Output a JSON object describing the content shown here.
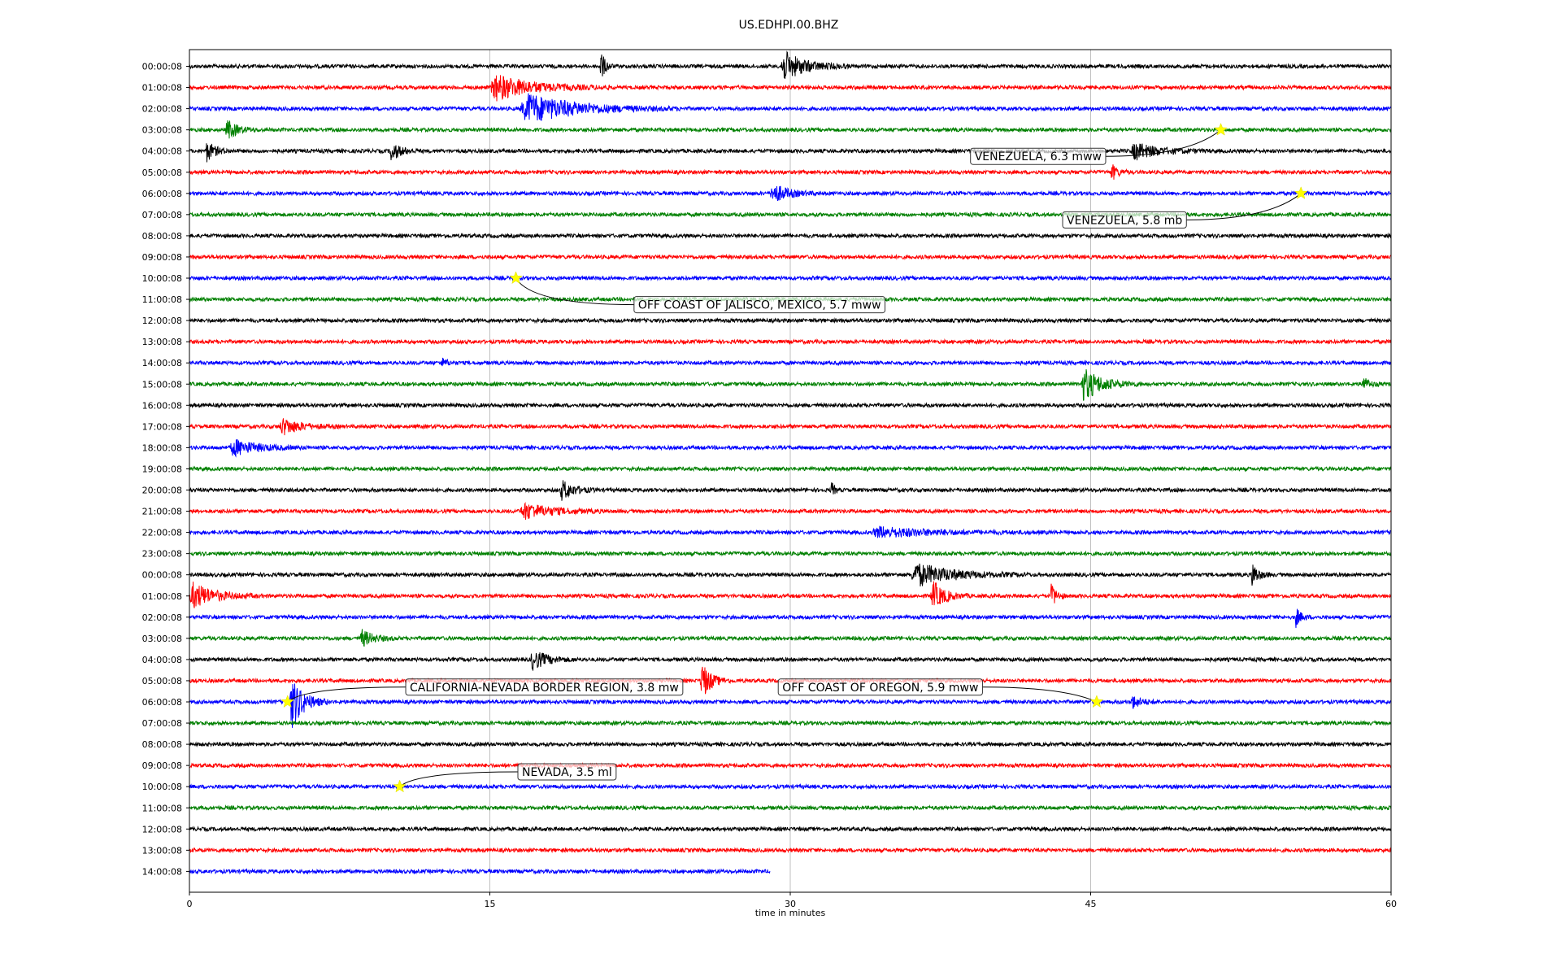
{
  "chart_data": {
    "type": "line",
    "title": "US.EDHPI.00.BHZ",
    "xlabel": "time in minutes",
    "ylabel": "",
    "xlim": [
      0,
      60
    ],
    "x_ticks": [
      "0",
      "15",
      "30",
      "45",
      "60"
    ],
    "x_tick_values": [
      0,
      15,
      30,
      45,
      60
    ],
    "grid": "vertical lines at x ticks",
    "row_labels": [
      "00:00:08",
      "01:00:08",
      "02:00:08",
      "03:00:08",
      "04:00:08",
      "05:00:08",
      "06:00:08",
      "07:00:08",
      "08:00:08",
      "09:00:08",
      "10:00:08",
      "11:00:08",
      "12:00:08",
      "13:00:08",
      "14:00:08",
      "15:00:08",
      "16:00:08",
      "17:00:08",
      "18:00:08",
      "19:00:08",
      "20:00:08",
      "21:00:08",
      "22:00:08",
      "23:00:08",
      "00:00:08",
      "01:00:08",
      "02:00:08",
      "03:00:08",
      "04:00:08",
      "05:00:08",
      "06:00:08",
      "07:00:08",
      "08:00:08",
      "09:00:08",
      "10:00:08",
      "11:00:08",
      "12:00:08",
      "13:00:08",
      "14:00:08"
    ],
    "trace_colors": [
      "#000000",
      "#ff0000",
      "#0000ff",
      "#008000"
    ],
    "last_row_end_minute": 29,
    "bursts": [
      {
        "row": 0,
        "start": 20.5,
        "end": 21.2,
        "amp": 1.0
      },
      {
        "row": 0,
        "start": 29.5,
        "end": 33.0,
        "amp": 0.9
      },
      {
        "row": 1,
        "start": 15.0,
        "end": 21.0,
        "amp": 0.8
      },
      {
        "row": 2,
        "start": 16.5,
        "end": 24.5,
        "amp": 0.9
      },
      {
        "row": 3,
        "start": 1.8,
        "end": 3.5,
        "amp": 0.6
      },
      {
        "row": 4,
        "start": 0.8,
        "end": 2.2,
        "amp": 0.6
      },
      {
        "row": 4,
        "start": 10.0,
        "end": 11.5,
        "amp": 0.6
      },
      {
        "row": 4,
        "start": 47.0,
        "end": 51.0,
        "amp": 0.5
      },
      {
        "row": 5,
        "start": 46.0,
        "end": 47.0,
        "amp": 0.5
      },
      {
        "row": 6,
        "start": 29.0,
        "end": 31.5,
        "amp": 0.6
      },
      {
        "row": 14,
        "start": 12.5,
        "end": 13.5,
        "amp": 0.3
      },
      {
        "row": 15,
        "start": 44.5,
        "end": 47.5,
        "amp": 1.0
      },
      {
        "row": 15,
        "start": 58.5,
        "end": 59.5,
        "amp": 0.5
      },
      {
        "row": 17,
        "start": 4.5,
        "end": 7.5,
        "amp": 0.5
      },
      {
        "row": 18,
        "start": 2.0,
        "end": 6.0,
        "amp": 0.5
      },
      {
        "row": 20,
        "start": 18.5,
        "end": 20.5,
        "amp": 0.6
      },
      {
        "row": 20,
        "start": 32.0,
        "end": 32.5,
        "amp": 0.6
      },
      {
        "row": 21,
        "start": 16.5,
        "end": 21.0,
        "amp": 0.5
      },
      {
        "row": 22,
        "start": 34.0,
        "end": 43.0,
        "amp": 0.3
      },
      {
        "row": 24,
        "start": 36.0,
        "end": 42.0,
        "amp": 0.7
      },
      {
        "row": 24,
        "start": 53.0,
        "end": 54.0,
        "amp": 0.8
      },
      {
        "row": 25,
        "start": 0.0,
        "end": 3.5,
        "amp": 0.8
      },
      {
        "row": 25,
        "start": 37.0,
        "end": 39.0,
        "amp": 0.9
      },
      {
        "row": 25,
        "start": 43.0,
        "end": 43.8,
        "amp": 0.8
      },
      {
        "row": 26,
        "start": 55.2,
        "end": 56.0,
        "amp": 0.6
      },
      {
        "row": 27,
        "start": 8.5,
        "end": 10.5,
        "amp": 0.5
      },
      {
        "row": 28,
        "start": 17.0,
        "end": 19.5,
        "amp": 0.6
      },
      {
        "row": 29,
        "start": 25.5,
        "end": 27.0,
        "amp": 1.2
      },
      {
        "row": 30,
        "start": 5.0,
        "end": 7.0,
        "amp": 1.6
      },
      {
        "row": 30,
        "start": 47.0,
        "end": 48.5,
        "amp": 0.4
      }
    ],
    "events": [
      {
        "label": "VENEZUELA, 6.3 mww",
        "row": 3,
        "minute": 51.5,
        "box_minute": 39.0,
        "box_row": 4.25
      },
      {
        "label": "VENEZUELA, 5.8 mb",
        "row": 6,
        "minute": 55.5,
        "box_minute": 43.6,
        "box_row": 7.25
      },
      {
        "label": "OFF COAST OF JALISCO, MEXICO, 5.7 mww",
        "row": 10,
        "minute": 16.3,
        "box_minute": 22.2,
        "box_row": 11.25
      },
      {
        "label": "CALIFORNIA-NEVADA BORDER REGION, 3.8 mw",
        "row": 30,
        "minute": 4.9,
        "box_minute": 10.8,
        "box_row": 29.3
      },
      {
        "label": "OFF COAST OF OREGON, 5.9 mww",
        "row": 30,
        "minute": 45.3,
        "box_minute": 29.4,
        "box_row": 29.3
      },
      {
        "label": "NEVADA, 3.5 ml",
        "row": 34,
        "minute": 10.5,
        "box_minute": 16.4,
        "box_row": 33.3
      }
    ]
  }
}
